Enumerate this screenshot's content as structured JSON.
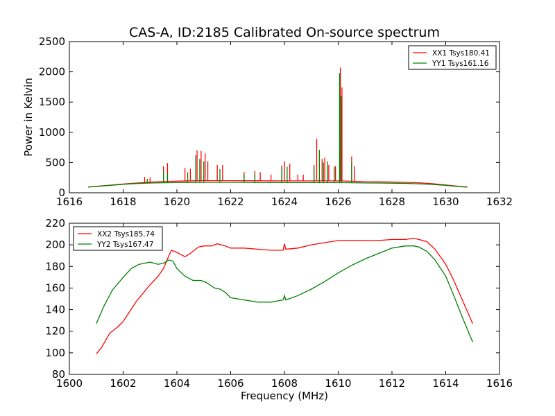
{
  "chart_data": [
    {
      "type": "line",
      "title": "CAS-A, ID:2185 Calibrated On-source spectrum",
      "xlabel": "",
      "ylabel": "Power in Kelvin",
      "xlim": [
        1616,
        1632
      ],
      "ylim": [
        0,
        2500
      ],
      "xticks": [
        "1616",
        "1618",
        "1620",
        "1622",
        "1624",
        "1626",
        "1628",
        "1630",
        "1632"
      ],
      "yticks": [
        "0",
        "500",
        "1000",
        "1500",
        "2000",
        "2500"
      ],
      "legend": "top-right",
      "grid": false,
      "series": [
        {
          "name": "XX1 Tsys180.41",
          "color": "#ff0000",
          "x": [
            1616.7,
            1617.5,
            1618.0,
            1618.5,
            1619.0,
            1619.5,
            1620.0,
            1620.5,
            1621.0,
            1621.5,
            1622.0,
            1622.5,
            1623.0,
            1623.5,
            1624.0,
            1624.5,
            1625.0,
            1625.5,
            1626.0,
            1626.5,
            1627.0,
            1627.5,
            1628.0,
            1628.5,
            1629.0,
            1629.5,
            1630.0,
            1630.5,
            1630.8
          ],
          "y": [
            95,
            125,
            145,
            160,
            175,
            185,
            192,
            197,
            200,
            200,
            200,
            198,
            198,
            197,
            196,
            196,
            196,
            196,
            196,
            190,
            182,
            180,
            178,
            172,
            165,
            150,
            128,
            105,
            95
          ],
          "spikes": [
            {
              "x": 1618.8,
              "y": 260
            },
            {
              "x": 1619.0,
              "y": 250
            },
            {
              "x": 1619.5,
              "y": 440
            },
            {
              "x": 1619.65,
              "y": 490
            },
            {
              "x": 1620.3,
              "y": 410
            },
            {
              "x": 1620.5,
              "y": 400
            },
            {
              "x": 1620.75,
              "y": 700
            },
            {
              "x": 1620.9,
              "y": 690
            },
            {
              "x": 1621.05,
              "y": 650
            },
            {
              "x": 1621.15,
              "y": 520
            },
            {
              "x": 1621.5,
              "y": 460
            },
            {
              "x": 1621.7,
              "y": 460
            },
            {
              "x": 1622.5,
              "y": 340
            },
            {
              "x": 1622.9,
              "y": 360
            },
            {
              "x": 1623.1,
              "y": 340
            },
            {
              "x": 1623.5,
              "y": 300
            },
            {
              "x": 1623.9,
              "y": 450
            },
            {
              "x": 1624.0,
              "y": 520
            },
            {
              "x": 1624.2,
              "y": 480
            },
            {
              "x": 1624.5,
              "y": 300
            },
            {
              "x": 1624.7,
              "y": 300
            },
            {
              "x": 1625.1,
              "y": 460
            },
            {
              "x": 1625.2,
              "y": 890
            },
            {
              "x": 1625.4,
              "y": 560
            },
            {
              "x": 1625.5,
              "y": 580
            },
            {
              "x": 1625.65,
              "y": 460
            },
            {
              "x": 1625.9,
              "y": 440
            },
            {
              "x": 1626.08,
              "y": 2070
            },
            {
              "x": 1626.14,
              "y": 1740
            },
            {
              "x": 1626.5,
              "y": 600
            },
            {
              "x": 1626.6,
              "y": 440
            }
          ]
        },
        {
          "name": "YY1 Tsys161.16",
          "color": "#008000",
          "x": [
            1616.7,
            1617.5,
            1618.0,
            1618.5,
            1619.0,
            1619.5,
            1620.0,
            1620.5,
            1621.0,
            1621.5,
            1622.0,
            1622.5,
            1623.0,
            1623.5,
            1624.0,
            1624.5,
            1625.0,
            1625.5,
            1626.0,
            1626.5,
            1627.0,
            1627.5,
            1628.0,
            1628.5,
            1629.0,
            1629.5,
            1630.0,
            1630.5,
            1630.8
          ],
          "y": [
            95,
            120,
            140,
            152,
            160,
            165,
            168,
            170,
            172,
            172,
            172,
            171,
            170,
            169,
            168,
            168,
            168,
            168,
            168,
            165,
            162,
            160,
            158,
            155,
            148,
            138,
            122,
            102,
            92
          ],
          "spikes": [
            {
              "x": 1618.9,
              "y": 230
            },
            {
              "x": 1619.5,
              "y": 350
            },
            {
              "x": 1619.65,
              "y": 320
            },
            {
              "x": 1620.4,
              "y": 340
            },
            {
              "x": 1620.7,
              "y": 620
            },
            {
              "x": 1620.85,
              "y": 560
            },
            {
              "x": 1621.0,
              "y": 520
            },
            {
              "x": 1621.6,
              "y": 390
            },
            {
              "x": 1622.5,
              "y": 300
            },
            {
              "x": 1622.9,
              "y": 310
            },
            {
              "x": 1623.9,
              "y": 400
            },
            {
              "x": 1624.1,
              "y": 430
            },
            {
              "x": 1625.1,
              "y": 420
            },
            {
              "x": 1625.3,
              "y": 710
            },
            {
              "x": 1625.45,
              "y": 500
            },
            {
              "x": 1625.6,
              "y": 520
            },
            {
              "x": 1625.85,
              "y": 430
            },
            {
              "x": 1626.05,
              "y": 1980
            },
            {
              "x": 1626.12,
              "y": 1600
            },
            {
              "x": 1626.5,
              "y": 500
            }
          ]
        }
      ]
    },
    {
      "type": "line",
      "title": "",
      "xlabel": "Frequency (MHz)",
      "ylabel": "",
      "xlim": [
        1600,
        1616
      ],
      "ylim": [
        80,
        220
      ],
      "xticks": [
        "1600",
        "1602",
        "1604",
        "1606",
        "1608",
        "1610",
        "1612",
        "1614",
        "1616"
      ],
      "yticks": [
        "80",
        "100",
        "120",
        "140",
        "160",
        "180",
        "200",
        "220"
      ],
      "legend": "top-left",
      "grid": false,
      "series": [
        {
          "name": "XX2 Tsys185.74",
          "color": "#ff0000",
          "x": [
            1601.0,
            1601.2,
            1601.5,
            1601.8,
            1602.0,
            1602.5,
            1603.0,
            1603.3,
            1603.5,
            1603.7,
            1603.8,
            1604.0,
            1604.3,
            1604.5,
            1604.8,
            1605.0,
            1605.3,
            1605.5,
            1605.8,
            1606.0,
            1606.5,
            1607.0,
            1607.5,
            1607.95,
            1608.0,
            1608.05,
            1608.5,
            1609.0,
            1609.5,
            1610.0,
            1610.5,
            1611.0,
            1611.5,
            1612.0,
            1612.5,
            1612.8,
            1613.0,
            1613.3,
            1613.6,
            1614.0,
            1614.3,
            1614.6,
            1615.0
          ],
          "y": [
            99,
            105,
            118,
            124,
            129,
            148,
            163,
            171,
            178,
            190,
            195,
            193,
            189,
            192,
            198,
            199,
            199,
            201,
            199,
            197,
            197,
            196,
            195,
            195,
            201,
            196,
            197,
            200,
            202,
            204,
            204,
            204,
            204,
            205,
            205,
            206,
            205,
            203,
            196,
            182,
            167,
            150,
            127
          ],
          "spikes": []
        },
        {
          "name": "YY2 Tsys167.47",
          "color": "#008000",
          "x": [
            1601.0,
            1601.3,
            1601.6,
            1602.0,
            1602.3,
            1602.6,
            1603.0,
            1603.3,
            1603.5,
            1603.7,
            1603.85,
            1604.0,
            1604.3,
            1604.6,
            1604.9,
            1605.1,
            1605.4,
            1605.6,
            1605.8,
            1606.0,
            1606.5,
            1607.0,
            1607.5,
            1607.95,
            1608.0,
            1608.05,
            1608.5,
            1609.0,
            1609.5,
            1610.0,
            1610.5,
            1611.0,
            1611.5,
            1612.0,
            1612.5,
            1612.8,
            1613.0,
            1613.3,
            1613.6,
            1614.0,
            1614.3,
            1614.6,
            1615.0
          ],
          "y": [
            127,
            144,
            158,
            170,
            178,
            182,
            184,
            182,
            183,
            186,
            185,
            178,
            171,
            167,
            167,
            165,
            160,
            159,
            156,
            151,
            149,
            147,
            147,
            149,
            153,
            149,
            153,
            159,
            166,
            174,
            181,
            187,
            192,
            197,
            199,
            199,
            198,
            194,
            186,
            171,
            153,
            134,
            110
          ],
          "spikes": []
        }
      ]
    }
  ]
}
